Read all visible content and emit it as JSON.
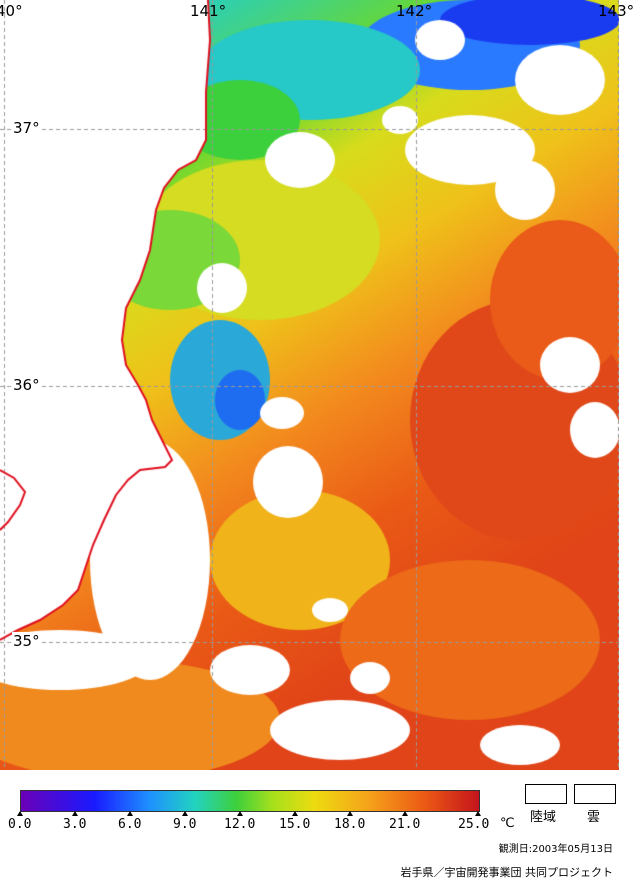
{
  "map": {
    "longitude_labels": [
      "40°",
      "141°",
      "142°",
      "143°"
    ],
    "latitude_labels": [
      "37°",
      "36°",
      "35°"
    ],
    "coastline_color": "#e01020",
    "grid_color": "#9a9a9a",
    "cloud_color": "#ffffff"
  },
  "colorbar": {
    "ticks": [
      "0.0",
      "3.0",
      "6.0",
      "9.0",
      "12.0",
      "15.0",
      "18.0",
      "21.0",
      "25.0"
    ],
    "unit": "℃",
    "colors": [
      "#6a00b8",
      "#1a1aff",
      "#1e90ff",
      "#22d3c0",
      "#3dcf3d",
      "#a6e01c",
      "#ecdc10",
      "#f5a21a",
      "#ec5a14",
      "#c4141c"
    ]
  },
  "legend": {
    "land_label": "陸域",
    "cloud_label": "雲"
  },
  "footer": {
    "observation_date": "観測日:2003年05月13日",
    "credit": "岩手県／宇宙開発事業団 共同プロジェクト"
  }
}
